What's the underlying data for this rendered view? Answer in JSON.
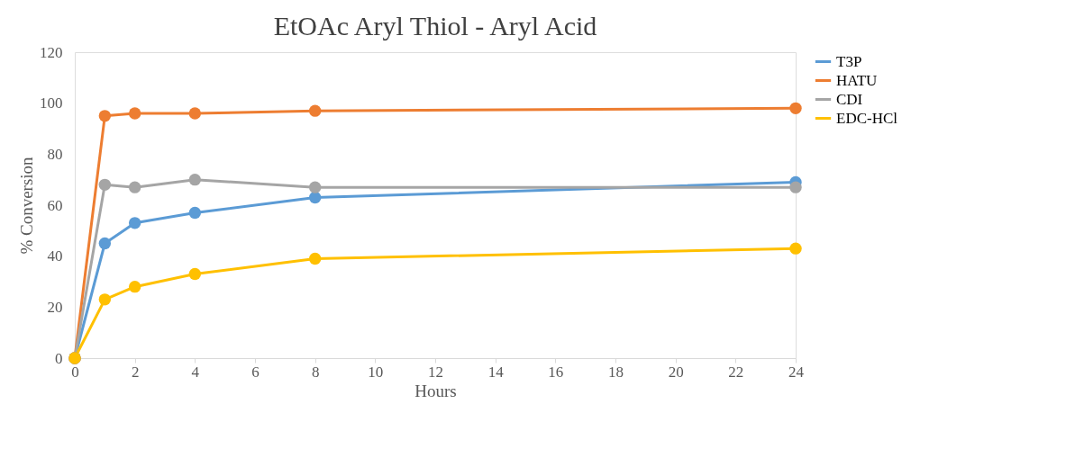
{
  "chart_data": {
    "type": "line",
    "title": "EtOAc Aryl Thiol - Aryl Acid",
    "xlabel": "Hours",
    "ylabel": "% Conversion",
    "x": [
      0,
      1,
      2,
      4,
      8,
      24
    ],
    "series": [
      {
        "name": "T3P",
        "color": "#5b9bd5",
        "values": [
          0,
          45,
          53,
          57,
          63,
          69
        ]
      },
      {
        "name": "HATU",
        "color": "#ed7d31",
        "values": [
          0,
          95,
          96,
          96,
          97,
          98
        ]
      },
      {
        "name": "CDI",
        "color": "#a5a5a5",
        "values": [
          0,
          68,
          67,
          70,
          67,
          67
        ]
      },
      {
        "name": "EDC-HCl",
        "color": "#ffc000",
        "values": [
          0,
          23,
          28,
          33,
          39,
          43
        ]
      }
    ],
    "xlim": [
      0,
      24
    ],
    "xticks": [
      0,
      2,
      4,
      6,
      8,
      10,
      12,
      14,
      16,
      18,
      20,
      22,
      24
    ],
    "ylim": [
      0,
      120
    ],
    "yticks": [
      0,
      20,
      40,
      60,
      80,
      100,
      120
    ],
    "grid": false,
    "legend": "right",
    "marker": "circle",
    "line_style": "solid"
  }
}
